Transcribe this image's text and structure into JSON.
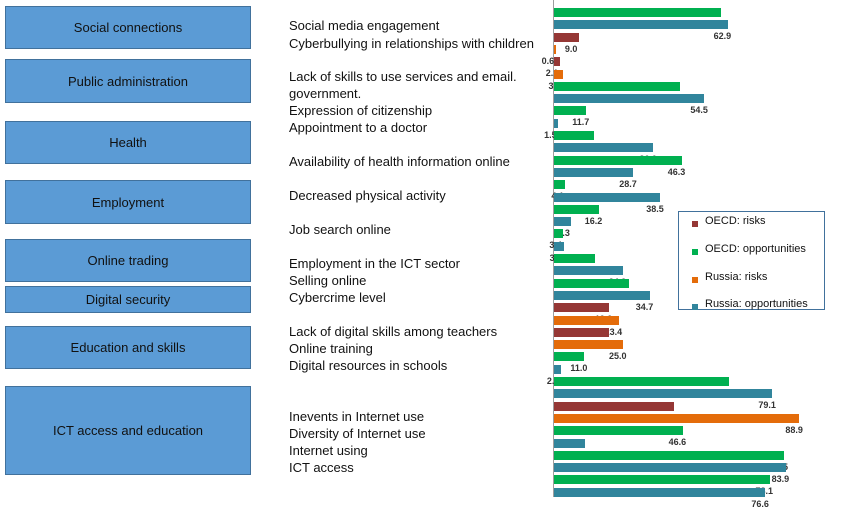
{
  "categories": [
    {
      "label": "Social connections"
    },
    {
      "label": "Public administration"
    },
    {
      "label": "Health"
    },
    {
      "label": "Employment"
    },
    {
      "label": "Online trading"
    },
    {
      "label": "Digital security"
    },
    {
      "label": "Education and skills"
    },
    {
      "label": "ICT access and education"
    }
  ],
  "indicator_labels": [
    "Social media engagement",
    "Cyberbullying in relationships with children",
    "Lack of skills to use services and email.",
    "government.",
    "Expression of citizenship",
    "Appointment to a doctor",
    "Availability of health information online",
    "Decreased physical activity",
    "Job search online",
    "Employment in the ICT sector",
    "Selling online",
    "Cybercrime level",
    "Lack of digital skills among teachers",
    "Online training",
    "Digital resources in schools",
    "Inevents in Internet use",
    "Diversity of Internet use",
    "Internet using",
    "ICT access"
  ],
  "chart_data": {
    "type": "bar",
    "orientation": "horizontal",
    "series": [
      {
        "name": "OECD: risks",
        "color": "#953735"
      },
      {
        "name": "OECD: opportunities",
        "color": "#00b050"
      },
      {
        "name": "Russia: risks",
        "color": "#e46c0a"
      },
      {
        "name": "Russia: opportunities",
        "color": "#31859c"
      }
    ],
    "bars": [
      {
        "series": "OECD: opportunities",
        "value": 60.4
      },
      {
        "series": "Russia: opportunities",
        "value": 62.9
      },
      {
        "series": "OECD: risks",
        "value": 9.0
      },
      {
        "series": "Russia: risks",
        "value": 0.6
      },
      {
        "series": "OECD: risks",
        "value": 2.1
      },
      {
        "series": "Russia: risks",
        "value": 3.1
      },
      {
        "series": "OECD: opportunities",
        "value": 45.6
      },
      {
        "series": "Russia: opportunities",
        "value": 54.5
      },
      {
        "series": "OECD: opportunities",
        "value": 11.7
      },
      {
        "series": "Russia: opportunities",
        "value": 1.5
      },
      {
        "series": "OECD: opportunities",
        "value": 14.6
      },
      {
        "series": "Russia: opportunities",
        "value": 36.0
      },
      {
        "series": "OECD: opportunities",
        "value": 46.3
      },
      {
        "series": "Russia: opportunities",
        "value": 28.7
      },
      {
        "series": "OECD: opportunities",
        "value": 4.1
      },
      {
        "series": "Russia: opportunities",
        "value": 38.5
      },
      {
        "series": "OECD: opportunities",
        "value": 16.2
      },
      {
        "series": "Russia: opportunities",
        "value": 6.3
      },
      {
        "series": "OECD: opportunities",
        "value": 3.4
      },
      {
        "series": "Russia: opportunities",
        "value": 3.5
      },
      {
        "series": "OECD: opportunities",
        "value": 14.7
      },
      {
        "series": "Russia: opportunities",
        "value": 24.9
      },
      {
        "series": "OECD: opportunities",
        "value": 27.3
      },
      {
        "series": "Russia: opportunities",
        "value": 34.7
      },
      {
        "series": "OECD: risks",
        "value": 19.9
      },
      {
        "series": "Russia: risks",
        "value": 23.4
      },
      {
        "series": "OECD: risks",
        "value": 19.9
      },
      {
        "series": "Russia: risks",
        "value": 25.0
      },
      {
        "series": "OECD: opportunities",
        "value": 11.0
      },
      {
        "series": "Russia: opportunities",
        "value": 2.5
      },
      {
        "series": "OECD: opportunities",
        "value": 63.3
      },
      {
        "series": "Russia: opportunities",
        "value": 79.1
      },
      {
        "series": "OECD: risks",
        "value": 43.3
      },
      {
        "series": "Russia: risks",
        "value": 88.9
      },
      {
        "series": "OECD: opportunities",
        "value": 46.6
      },
      {
        "series": "Russia: opportunities",
        "value": 11.1
      },
      {
        "series": "OECD: opportunities",
        "value": 83.5
      },
      {
        "series": "Russia: opportunities",
        "value": 83.9
      },
      {
        "series": "OECD: opportunities",
        "value": 78.1
      },
      {
        "series": "Russia: opportunities",
        "value": 76.6
      }
    ],
    "legend_position": "right",
    "grid": false,
    "xlim": [
      0,
      100
    ]
  }
}
